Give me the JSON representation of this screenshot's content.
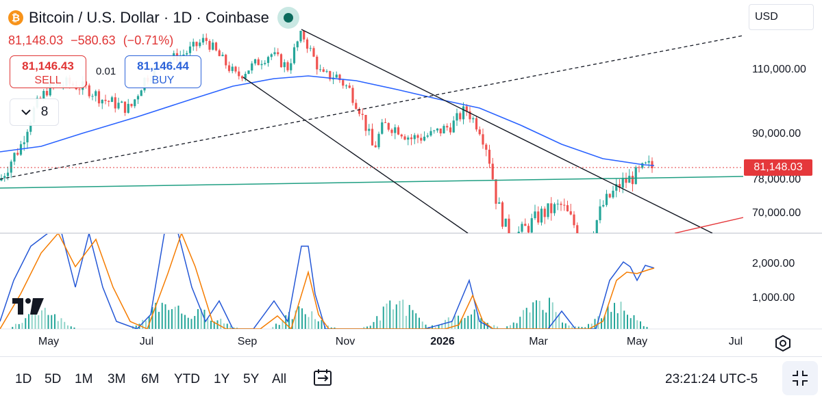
{
  "header": {
    "coin_icon": "bitcoin-icon",
    "coin_symbol": "₿",
    "title": "Bitcoin / U.S. Dollar · 1D · Coinbase",
    "last_price": "81,148.03",
    "change": "−580.63",
    "change_pct": "(−0.71%)"
  },
  "trade": {
    "sell_price": "81,146.43",
    "sell_label": "SELL",
    "spread": "0.01",
    "buy_price": "81,146.44",
    "buy_label": "BUY"
  },
  "indicators_count": "8",
  "currency": "USD",
  "price_axis": {
    "ticks": [
      "110,000.00",
      "90,000.00",
      "78,000.00",
      "70,000.00"
    ],
    "current_price_tag": "81,148.03"
  },
  "oscillator_axis": {
    "ticks": [
      "2,000.00",
      "1,000.00"
    ]
  },
  "time_axis": [
    "May",
    "Jul",
    "Sep",
    "Nov",
    "2026",
    "Mar",
    "May",
    "Jul"
  ],
  "ranges": [
    "1D",
    "5D",
    "1M",
    "3M",
    "6M",
    "YTD",
    "1Y",
    "5Y",
    "All"
  ],
  "clock": "23:21:24 UTC-5",
  "colors": {
    "up": "#26a69a",
    "down": "#ef5350",
    "ma": "#2962ff",
    "osc_blue": "#2457d6",
    "osc_orange": "#f57c00",
    "horizontal_support": "#1e9e82",
    "price_line": "#e5383b"
  },
  "chart_data": {
    "type": "candlestick",
    "price_panel": {
      "y_scale_labels": [
        110000,
        90000,
        78000,
        70000
      ],
      "current_price": 81148.03,
      "series": [
        {
          "name": "close",
          "points": [
            [
              "Apr 10",
              78000
            ],
            [
              "Apr 25",
              86000
            ],
            [
              "May 10",
              96000
            ],
            [
              "May 25",
              104000
            ],
            [
              "Jun 10",
              106000
            ],
            [
              "Jun 25",
              103000
            ],
            [
              "Jul 10",
              110000
            ],
            [
              "Jul 25",
              117000
            ],
            [
              "Aug 10",
              115000
            ],
            [
              "Aug 20",
              120000
            ],
            [
              "Sep 1",
              110000
            ],
            [
              "Sep 20",
              113000
            ],
            [
              "Oct 6",
              124000
            ],
            [
              "Oct 20",
              109000
            ],
            [
              "Nov 5",
              100000
            ],
            [
              "Nov 20",
              84000
            ],
            [
              "Dec 5",
              91000
            ],
            [
              "Dec 20",
              88000
            ],
            [
              "Jan 10",
              93000
            ],
            [
              "Jan 25",
              87000
            ],
            [
              "Feb 5",
              72000
            ],
            [
              "Feb 20",
              68000
            ],
            [
              "Mar 5",
              69000
            ],
            [
              "Mar 20",
              70000
            ],
            [
              "Apr 5",
              68000
            ],
            [
              "Apr 20",
              76000
            ],
            [
              "May 5",
              81148
            ]
          ]
        }
      ]
    },
    "oscillator_panel": {
      "y_scale_labels": [
        2000,
        1000
      ]
    }
  }
}
